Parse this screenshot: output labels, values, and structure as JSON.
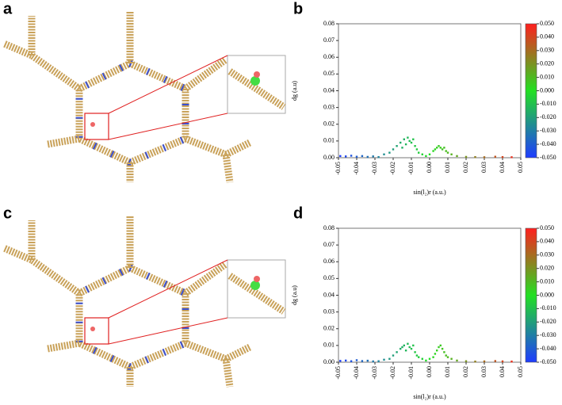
{
  "panel_labels": [
    "a",
    "b",
    "c",
    "d"
  ],
  "chart_data": [
    {
      "type": "scatter",
      "xlabel": "sin(l₂)r (a.u.)",
      "ylabel": "dg (a.u)",
      "xlim": [
        -0.05,
        0.05
      ],
      "ylim": [
        0,
        0.08
      ],
      "xticks": [
        -0.05,
        -0.04,
        -0.03,
        -0.02,
        -0.01,
        {
          "value": 0,
          "label": "0.00"
        },
        0.01,
        0.02,
        0.03,
        0.04,
        0.05
      ],
      "yticks": [
        {
          "value": 0,
          "label": "0.00"
        },
        0.01,
        0.02,
        0.03,
        0.04,
        0.05,
        0.06,
        0.07,
        0.08
      ],
      "colormap": [
        "#1f3cff",
        "#22e022",
        "#ff1f1f"
      ],
      "clim": [
        -0.05,
        0.05
      ],
      "cticks": [
        {
          "value": 0.05,
          "label": "0.050"
        },
        {
          "value": 0.04,
          "label": "0.040"
        },
        {
          "value": 0.03,
          "label": "0.030"
        },
        {
          "value": 0.02,
          "label": "0.020"
        },
        {
          "value": 0.01,
          "label": "0.010"
        },
        {
          "value": 0,
          "label": "0.000"
        },
        {
          "value": -0.01,
          "label": "-0.010"
        },
        {
          "value": -0.02,
          "label": "-0.020"
        },
        {
          "value": -0.03,
          "label": "-0.030"
        },
        {
          "value": -0.04,
          "label": "-0.040"
        },
        {
          "value": -0.05,
          "label": "-0.050"
        }
      ],
      "x": [
        -0.049,
        -0.046,
        -0.043,
        -0.04,
        -0.037,
        -0.034,
        -0.031,
        -0.028,
        -0.025,
        -0.022,
        -0.02,
        -0.018,
        -0.016,
        -0.015,
        -0.014,
        -0.013,
        -0.012,
        -0.011,
        -0.01,
        -0.009,
        -0.008,
        -0.007,
        -0.006,
        -0.004,
        -0.002,
        0.0,
        0.002,
        0.003,
        0.004,
        0.005,
        0.006,
        0.007,
        0.008,
        0.009,
        0.01,
        0.012,
        0.015,
        0.02,
        0.025,
        0.03,
        0.036,
        0.04,
        0.045
      ],
      "values": [
        0.001,
        0.0008,
        0.0012,
        0.0006,
        0.001,
        0.0005,
        0.0008,
        0.0004,
        0.002,
        0.003,
        0.005,
        0.007,
        0.009,
        0.006,
        0.011,
        0.008,
        0.012,
        0.01,
        0.009,
        0.011,
        0.007,
        0.005,
        0.003,
        0.002,
        0.001,
        0.002,
        0.004,
        0.005,
        0.006,
        0.007,
        0.006,
        0.005,
        0.006,
        0.004,
        0.003,
        0.002,
        0.001,
        0.0005,
        0.0004,
        0.0003,
        0.0006,
        0.0004,
        0.0003
      ]
    },
    {
      "type": "scatter",
      "xlabel": "sin(l₂)r (a.u.)",
      "ylabel": "dg (a.u)",
      "xlim": [
        -0.05,
        0.05
      ],
      "ylim": [
        0,
        0.08
      ],
      "xticks": [
        -0.05,
        -0.04,
        -0.03,
        -0.02,
        -0.01,
        {
          "value": 0,
          "label": "0.00"
        },
        0.01,
        0.02,
        0.03,
        0.04,
        0.05
      ],
      "yticks": [
        {
          "value": 0,
          "label": "0.00"
        },
        0.01,
        0.02,
        0.03,
        0.04,
        0.05,
        0.06,
        0.07,
        0.08
      ],
      "colormap": [
        "#1f3cff",
        "#22e022",
        "#ff1f1f"
      ],
      "clim": [
        -0.05,
        0.05
      ],
      "cticks": [
        {
          "value": 0.05,
          "label": "0.050"
        },
        {
          "value": 0.04,
          "label": "0.040"
        },
        {
          "value": 0.03,
          "label": "0.030"
        },
        {
          "value": 0.02,
          "label": "0.020"
        },
        {
          "value": 0.01,
          "label": "0.010"
        },
        {
          "value": 0,
          "label": "0.000"
        },
        {
          "value": -0.01,
          "label": "-0.010"
        },
        {
          "value": -0.02,
          "label": "-0.020"
        },
        {
          "value": -0.03,
          "label": "-0.030"
        },
        {
          "value": -0.04,
          "label": "-0.040"
        },
        {
          "value": -0.05,
          "label": "-0.050"
        }
      ],
      "x": [
        -0.049,
        -0.046,
        -0.043,
        -0.04,
        -0.037,
        -0.034,
        -0.031,
        -0.028,
        -0.025,
        -0.022,
        -0.02,
        -0.018,
        -0.016,
        -0.015,
        -0.014,
        -0.013,
        -0.012,
        -0.011,
        -0.01,
        -0.009,
        -0.008,
        -0.007,
        -0.006,
        -0.004,
        -0.002,
        0.0,
        0.002,
        0.003,
        0.004,
        0.005,
        0.006,
        0.007,
        0.008,
        0.009,
        0.01,
        0.012,
        0.015,
        0.02,
        0.025,
        0.03,
        0.036,
        0.04,
        0.045
      ],
      "values": [
        0.0008,
        0.001,
        0.0006,
        0.0012,
        0.0007,
        0.0009,
        0.0005,
        0.0006,
        0.0015,
        0.002,
        0.004,
        0.006,
        0.008,
        0.009,
        0.01,
        0.007,
        0.011,
        0.009,
        0.008,
        0.01,
        0.006,
        0.004,
        0.003,
        0.002,
        0.001,
        0.002,
        0.003,
        0.005,
        0.007,
        0.009,
        0.01,
        0.008,
        0.006,
        0.004,
        0.003,
        0.002,
        0.001,
        0.0006,
        0.0004,
        0.0005,
        0.0007,
        0.0005,
        0.0004
      ]
    }
  ]
}
